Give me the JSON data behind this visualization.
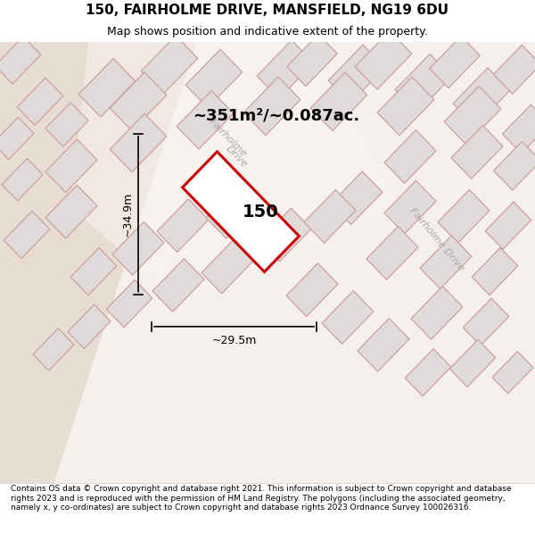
{
  "title_line1": "150, FAIRHOLME DRIVE, MANSFIELD, NG19 6DU",
  "title_line2": "Map shows position and indicative extent of the property.",
  "footer_text": "Contains OS data © Crown copyright and database right 2021. This information is subject to Crown copyright and database rights 2023 and is reproduced with the permission of HM Land Registry. The polygons (including the associated geometry, namely x, y co-ordinates) are subject to Crown copyright and database rights 2023 Ordnance Survey 100026316.",
  "area_label": "~351m²/~0.087ac.",
  "width_label": "~29.5m",
  "height_label": "~34.9m",
  "plot_number": "150",
  "bg_color": "#f5f0eb",
  "map_bg": "#f0ece6",
  "street_bg": "#ffffff",
  "building_fill": "#e0dada",
  "building_stroke": "#cc9999",
  "plot_stroke": "#cc0000",
  "plot_fill": "#ffffff",
  "road_label_color": "#aaaaaa",
  "footer_bg": "#ffffff",
  "street_line_color": "#d9a0a0"
}
